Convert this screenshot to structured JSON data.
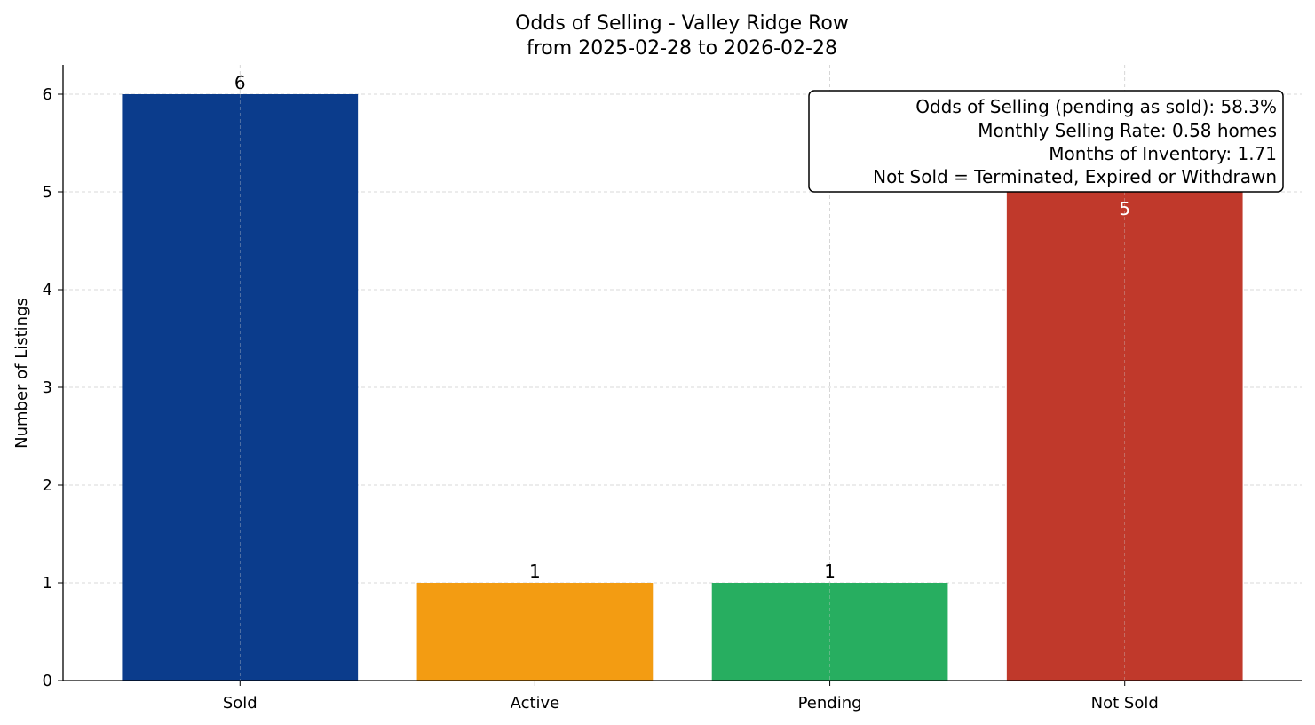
{
  "chart_data": {
    "type": "bar",
    "title": "Odds of Selling - Valley Ridge Row",
    "subtitle": "from 2025-02-28 to 2026-02-28",
    "xlabel": "",
    "ylabel": "Number of Listings",
    "categories": [
      "Sold",
      "Active",
      "Pending",
      "Not Sold"
    ],
    "values": [
      6,
      1,
      1,
      5
    ],
    "colors": [
      "#0b3c8c",
      "#f39c12",
      "#27ae60",
      "#c0392b"
    ],
    "ylim": [
      0,
      6.3
    ],
    "yticks": [
      0,
      1,
      2,
      3,
      4,
      5,
      6
    ],
    "grid": true,
    "annotation_box": {
      "placement": "top-right",
      "lines": [
        "Odds of Selling (pending as sold): 58.3%",
        "Monthly Selling Rate: 0.58 homes",
        "Months of Inventory: 1.71",
        "Not Sold = Terminated, Expired or Withdrawn"
      ]
    }
  }
}
